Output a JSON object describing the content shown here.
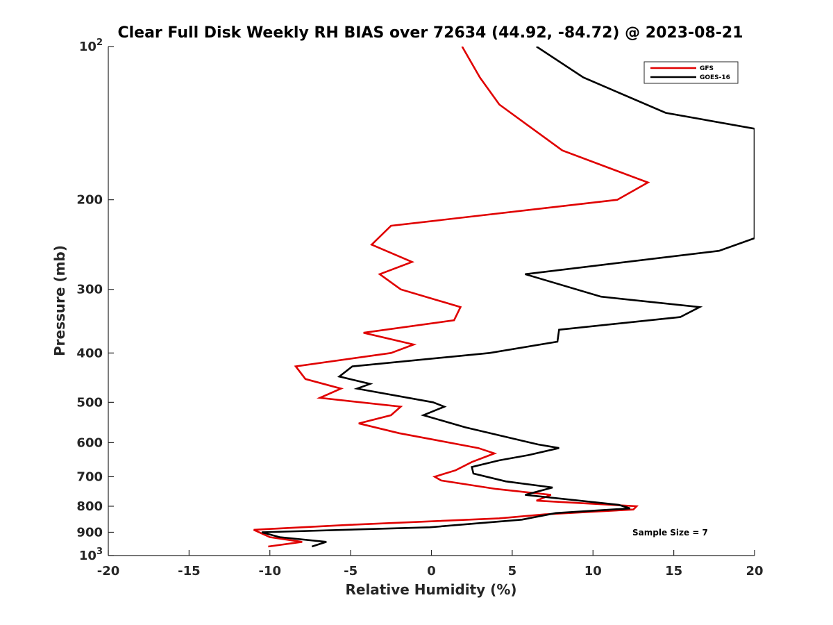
{
  "chart_data": {
    "type": "line",
    "title": "Clear Full Disk Weekly RH BIAS over 72634 (44.92, -84.72) @ 2023-08-21",
    "xlabel": "Relative Humidity (%)",
    "ylabel": "Pressure (mb)",
    "xlim": [
      -20,
      20
    ],
    "ylim": [
      100,
      1000
    ],
    "yscale": "log",
    "y_reversed": true,
    "x_ticks": [
      -20,
      -15,
      -10,
      -5,
      0,
      5,
      10,
      15,
      20
    ],
    "x_tick_labels": [
      "-20",
      "-15",
      "-10",
      "-5",
      "0",
      "5",
      "10",
      "15",
      "20"
    ],
    "y_ticks": [
      200,
      300,
      400,
      500,
      600,
      700,
      800,
      900
    ],
    "y_tick_labels": [
      "200",
      "300",
      "400",
      "500",
      "600",
      "700",
      "800",
      "900"
    ],
    "y_top_label": {
      "base": "10",
      "exp": "2"
    },
    "y_bottom_label": {
      "base": "10",
      "exp": "3"
    },
    "legend_location": "top-right",
    "annotation": "Sample Size = 7",
    "series": [
      {
        "name": "GFS",
        "color": "#e00000",
        "points": [
          [
            1.9,
            100
          ],
          [
            3.0,
            115
          ],
          [
            4.2,
            130
          ],
          [
            8.1,
            160
          ],
          [
            13.4,
            185
          ],
          [
            11.5,
            200
          ],
          [
            -2.5,
            225
          ],
          [
            -3.7,
            245
          ],
          [
            -1.2,
            265
          ],
          [
            -3.2,
            280
          ],
          [
            -1.9,
            300
          ],
          [
            1.8,
            325
          ],
          [
            1.4,
            345
          ],
          [
            -4.2,
            365
          ],
          [
            -1.1,
            385
          ],
          [
            -2.5,
            400
          ],
          [
            -8.4,
            425
          ],
          [
            -7.8,
            450
          ],
          [
            -5.6,
            470
          ],
          [
            -6.9,
            490
          ],
          [
            -1.9,
            510
          ],
          [
            -2.5,
            530
          ],
          [
            -4.5,
            550
          ],
          [
            -2.0,
            575
          ],
          [
            2.9,
            615
          ],
          [
            3.9,
            630
          ],
          [
            2.5,
            655
          ],
          [
            1.5,
            680
          ],
          [
            0.2,
            700
          ],
          [
            0.6,
            712
          ],
          [
            4.0,
            740
          ],
          [
            7.4,
            760
          ],
          [
            6.5,
            780
          ],
          [
            12.7,
            800
          ],
          [
            12.5,
            812
          ],
          [
            7.0,
            830
          ],
          [
            4.2,
            845
          ],
          [
            -5.0,
            870
          ],
          [
            -11.0,
            890
          ],
          [
            -10.0,
            920
          ],
          [
            -8.0,
            940
          ],
          [
            -10.1,
            960
          ]
        ]
      },
      {
        "name": "GOES-16",
        "color": "#000000",
        "points": [
          [
            6.5,
            100
          ],
          [
            9.4,
            115
          ],
          [
            14.5,
            135
          ],
          [
            20.0,
            145
          ],
          [
            20.0,
            238
          ],
          [
            17.8,
            252
          ],
          [
            5.8,
            280
          ],
          [
            10.5,
            310
          ],
          [
            16.6,
            325
          ],
          [
            15.4,
            340
          ],
          [
            7.9,
            360
          ],
          [
            7.8,
            380
          ],
          [
            3.6,
            400
          ],
          [
            -4.9,
            425
          ],
          [
            -5.7,
            445
          ],
          [
            -3.8,
            460
          ],
          [
            -4.6,
            470
          ],
          [
            0.1,
            500
          ],
          [
            0.8,
            510
          ],
          [
            -0.5,
            530
          ],
          [
            2.1,
            560
          ],
          [
            6.6,
            605
          ],
          [
            7.9,
            615
          ],
          [
            6.0,
            635
          ],
          [
            4.2,
            650
          ],
          [
            2.5,
            670
          ],
          [
            2.6,
            690
          ],
          [
            4.6,
            715
          ],
          [
            7.5,
            735
          ],
          [
            5.8,
            760
          ],
          [
            11.6,
            795
          ],
          [
            12.3,
            808
          ],
          [
            7.7,
            825
          ],
          [
            5.6,
            850
          ],
          [
            -0.1,
            880
          ],
          [
            -10.5,
            900
          ],
          [
            -9.4,
            920
          ],
          [
            -6.5,
            940
          ],
          [
            -7.4,
            960
          ]
        ]
      }
    ]
  }
}
